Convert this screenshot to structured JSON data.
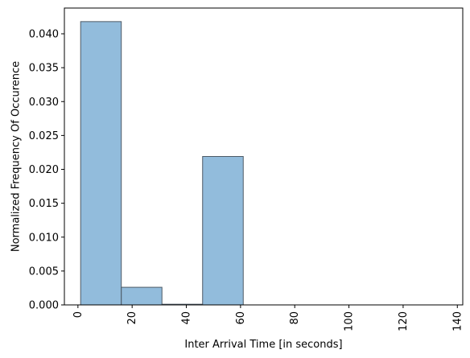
{
  "chart_data": {
    "type": "bar",
    "title": "",
    "xlabel": "Inter Arrival Time [in seconds]",
    "ylabel": "Normalized Frequency Of Occurence",
    "xlim": [
      -5,
      142
    ],
    "ylim": [
      0,
      0.0438
    ],
    "xticks": [
      0,
      20,
      40,
      60,
      80,
      100,
      120,
      140
    ],
    "xtick_labels": [
      "0",
      "20",
      "40",
      "60",
      "80",
      "100",
      "120",
      "140"
    ],
    "xtick_rotation": 90,
    "yticks": [
      0,
      0.005,
      0.01,
      0.015,
      0.02,
      0.025,
      0.03,
      0.035,
      0.04
    ],
    "ytick_labels": [
      "0.000",
      "0.005",
      "0.010",
      "0.015",
      "0.020",
      "0.025",
      "0.030",
      "0.035",
      "0.040"
    ],
    "grid": false,
    "bins": [
      {
        "x0": 1,
        "x1": 16,
        "value": 0.0418
      },
      {
        "x0": 16,
        "x1": 31,
        "value": 0.0026
      },
      {
        "x0": 31,
        "x1": 46,
        "value": 0.0001
      },
      {
        "x0": 46,
        "x1": 61,
        "value": 0.0219
      },
      {
        "x0": 61,
        "x1": 76,
        "value": 0
      },
      {
        "x0": 76,
        "x1": 91,
        "value": 0
      },
      {
        "x0": 91,
        "x1": 106,
        "value": 0
      },
      {
        "x0": 106,
        "x1": 121,
        "value": 0
      },
      {
        "x0": 121,
        "x1": 136,
        "value": 0
      }
    ],
    "colors": {
      "bar_fill": "#7fb0d6",
      "bar_edge": "#4d5a66"
    }
  }
}
